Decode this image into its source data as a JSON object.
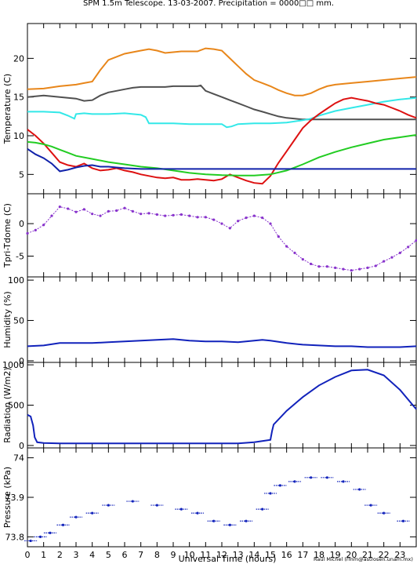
{
  "title": "SPM 1.5m Telescope. 13-03-2007. Precipitation = 0000□□ mm.",
  "xlabel": "Universal Time (hours)",
  "credit": "Raul Michel  (rmm@astrosen.unam.mx)",
  "colors": {
    "orange": "#e8861a",
    "gray": "#505050",
    "cyan": "#33e8e8",
    "red": "#dd1111",
    "green": "#22cc22",
    "blue": "#1122aa",
    "purple": "#8833cc",
    "navy": "#1122bb"
  },
  "chart_data": [
    {
      "type": "line",
      "ylabel": "Temperature (C)",
      "xlim": [
        0,
        24
      ],
      "ylim": [
        2.5,
        24.5
      ],
      "yticks": [
        5,
        10,
        15,
        20
      ],
      "grid": false,
      "series": [
        {
          "color": "orange",
          "x": [
            0,
            1,
            2,
            3,
            3.5,
            4,
            4.5,
            5,
            5.5,
            6,
            6.5,
            7,
            7.5,
            8,
            8.5,
            9,
            9.5,
            10,
            10.5,
            11,
            11.5,
            12,
            12.5,
            13,
            13.5,
            14,
            14.5,
            15,
            15.5,
            16,
            16.5,
            17,
            17.5,
            18,
            18.5,
            19,
            20,
            21,
            22,
            23,
            24
          ],
          "y": [
            16.0,
            16.1,
            16.4,
            16.6,
            16.8,
            17.0,
            18.5,
            19.8,
            20.2,
            20.6,
            20.8,
            21.0,
            21.2,
            21.0,
            20.7,
            20.8,
            20.9,
            20.9,
            20.9,
            21.3,
            21.2,
            21.0,
            20.0,
            19.0,
            18.0,
            17.2,
            16.8,
            16.4,
            15.9,
            15.5,
            15.2,
            15.2,
            15.5,
            16.0,
            16.4,
            16.6,
            16.8,
            17.0,
            17.2,
            17.4,
            17.6
          ]
        },
        {
          "color": "gray",
          "x": [
            0,
            1,
            2,
            3,
            3.5,
            4,
            4.5,
            5,
            5.5,
            6,
            6.5,
            7,
            7.5,
            8,
            8.5,
            9,
            9.5,
            10,
            10.5,
            10.7,
            11,
            11.5,
            12,
            12.5,
            13,
            13.5,
            14,
            14.5,
            15,
            15.5,
            16,
            16.5,
            17,
            18,
            19,
            20,
            21,
            22,
            23,
            24
          ],
          "y": [
            15.0,
            15.2,
            15.0,
            14.8,
            14.5,
            14.6,
            15.2,
            15.6,
            15.8,
            16.0,
            16.2,
            16.3,
            16.3,
            16.3,
            16.3,
            16.4,
            16.4,
            16.4,
            16.4,
            16.5,
            15.8,
            15.4,
            15.0,
            14.6,
            14.2,
            13.8,
            13.4,
            13.1,
            12.8,
            12.5,
            12.3,
            12.2,
            12.1,
            12.1,
            12.1,
            12.1,
            12.1,
            12.1,
            12.1,
            12.1
          ]
        },
        {
          "color": "cyan",
          "x": [
            0,
            1,
            2,
            2.5,
            2.9,
            3,
            3.5,
            4,
            5,
            6,
            7,
            7.3,
            7.5,
            8,
            9,
            10,
            11,
            12,
            12.3,
            12.6,
            13,
            14,
            15,
            16,
            17,
            17.5,
            18,
            19,
            20,
            21,
            22,
            23,
            24
          ],
          "y": [
            13.1,
            13.1,
            13.0,
            12.6,
            12.2,
            12.8,
            12.9,
            12.8,
            12.8,
            12.9,
            12.7,
            12.4,
            11.6,
            11.6,
            11.6,
            11.5,
            11.5,
            11.5,
            11.1,
            11.2,
            11.5,
            11.6,
            11.6,
            11.7,
            12.0,
            12.2,
            12.6,
            13.2,
            13.6,
            14.0,
            14.4,
            14.7,
            14.9
          ]
        },
        {
          "color": "red",
          "x": [
            0,
            0.5,
            1,
            1.5,
            2,
            2.5,
            3,
            3.5,
            4,
            4.5,
            5,
            5.5,
            6,
            6.5,
            7,
            7.5,
            8,
            8.5,
            9,
            9.5,
            10,
            10.5,
            11,
            11.5,
            12,
            12.5,
            13,
            13.5,
            14,
            14.5,
            15,
            15.5,
            16,
            16.5,
            17,
            17.5,
            18,
            18.5,
            19,
            19.5,
            20,
            20.5,
            21,
            21.5,
            22,
            22.5,
            23,
            23.5,
            24
          ],
          "y": [
            10.8,
            10.0,
            9.0,
            7.8,
            6.6,
            6.2,
            6.0,
            6.4,
            5.8,
            5.5,
            5.6,
            5.8,
            5.5,
            5.3,
            5.0,
            4.8,
            4.6,
            4.5,
            4.6,
            4.3,
            4.3,
            4.4,
            4.3,
            4.2,
            4.4,
            5.0,
            4.6,
            4.2,
            3.9,
            3.8,
            4.8,
            6.5,
            8.0,
            9.5,
            11.0,
            12.0,
            12.8,
            13.5,
            14.2,
            14.7,
            14.9,
            14.7,
            14.5,
            14.2,
            14.0,
            13.6,
            13.2,
            12.7,
            12.3
          ]
        },
        {
          "color": "green",
          "x": [
            0,
            0.5,
            1,
            1.5,
            2,
            2.5,
            3,
            4,
            5,
            6,
            7,
            8,
            9,
            10,
            11,
            12,
            13,
            14,
            15,
            16,
            17,
            18,
            19,
            20,
            21,
            22,
            23,
            24
          ],
          "y": [
            9.2,
            9.1,
            8.9,
            8.6,
            8.2,
            7.8,
            7.4,
            7.0,
            6.6,
            6.3,
            6.0,
            5.8,
            5.5,
            5.2,
            5.0,
            4.9,
            4.85,
            4.85,
            5.0,
            5.5,
            6.3,
            7.2,
            7.9,
            8.5,
            9.0,
            9.5,
            9.8,
            10.1
          ]
        },
        {
          "color": "blue",
          "x": [
            0,
            0.5,
            1,
            1.5,
            2,
            2.5,
            3,
            3.5,
            4,
            4.5,
            5,
            5.5,
            6,
            6.5,
            7,
            8,
            9,
            10,
            11,
            12,
            13,
            14,
            15,
            16,
            17,
            18,
            19,
            20,
            21,
            22,
            23,
            24
          ],
          "y": [
            8.3,
            7.6,
            7.1,
            6.4,
            5.4,
            5.6,
            5.9,
            6.1,
            6.2,
            6.0,
            6.0,
            5.9,
            5.8,
            5.75,
            5.7,
            5.7,
            5.7,
            5.7,
            5.7,
            5.7,
            5.7,
            5.7,
            5.7,
            5.7,
            5.7,
            5.7,
            5.7,
            5.7,
            5.7,
            5.7,
            5.7,
            5.7
          ]
        }
      ]
    },
    {
      "type": "scatter",
      "ylabel": "Tpri-Tdome (C)",
      "xlim": [
        0,
        24
      ],
      "ylim": [
        -8.2,
        4.6
      ],
      "yticks": [
        -5,
        0
      ],
      "series": [
        {
          "color": "purple",
          "x": [
            0,
            0.5,
            1,
            1.5,
            2,
            2.5,
            3,
            3.5,
            4,
            4.5,
            5,
            5.5,
            6,
            6.5,
            7,
            7.5,
            8,
            8.5,
            9,
            9.5,
            10,
            10.5,
            11,
            11.5,
            12,
            12.5,
            13,
            13.5,
            14,
            14.5,
            15,
            15.5,
            16,
            16.5,
            17,
            17.5,
            18,
            18.5,
            19,
            19.5,
            20,
            20.5,
            21,
            21.5,
            22,
            22.5,
            23,
            23.5,
            24
          ],
          "y": [
            -1.5,
            -1.0,
            -0.2,
            1.2,
            2.6,
            2.3,
            1.8,
            2.2,
            1.5,
            1.2,
            1.9,
            2.0,
            2.4,
            1.9,
            1.5,
            1.6,
            1.4,
            1.2,
            1.3,
            1.4,
            1.2,
            1.0,
            1.0,
            0.6,
            0.0,
            -0.7,
            0.4,
            0.9,
            1.2,
            0.9,
            0.0,
            -2.0,
            -3.5,
            -4.5,
            -5.5,
            -6.2,
            -6.6,
            -6.6,
            -6.8,
            -7.0,
            -7.2,
            -7.0,
            -6.8,
            -6.5,
            -5.8,
            -5.2,
            -4.5,
            -3.6,
            -2.6
          ]
        }
      ]
    },
    {
      "type": "line",
      "ylabel": "Humidity (%)",
      "xlim": [
        0,
        24
      ],
      "ylim": [
        -2,
        104
      ],
      "yticks": [
        0,
        50,
        100
      ],
      "series": [
        {
          "color": "navy",
          "x": [
            0,
            1,
            2,
            3,
            4,
            5,
            6,
            7,
            8,
            9,
            10,
            11,
            12,
            13,
            14,
            14.5,
            15,
            16,
            17,
            18,
            19,
            20,
            21,
            22,
            23,
            24
          ],
          "y": [
            18,
            19,
            22,
            22,
            22,
            23,
            24,
            25,
            26,
            27,
            25,
            24,
            24,
            23,
            25,
            26,
            25,
            22,
            20,
            19,
            18,
            18,
            17,
            17,
            17,
            18
          ]
        }
      ]
    },
    {
      "type": "line",
      "ylabel": "Radiation (W/m2)",
      "xlim": [
        0,
        24
      ],
      "ylim": [
        -30,
        1030
      ],
      "yticks": [
        0,
        500,
        1000
      ],
      "series": [
        {
          "color": "navy",
          "x": [
            0,
            0.2,
            0.35,
            0.45,
            0.6,
            1,
            2,
            3,
            4,
            5,
            6,
            7,
            8,
            9,
            10,
            11,
            12,
            13,
            14,
            15,
            15.1,
            15.2,
            16,
            17,
            18,
            19,
            20,
            21,
            22,
            23,
            24
          ],
          "y": [
            380,
            360,
            250,
            100,
            40,
            30,
            25,
            25,
            25,
            25,
            25,
            25,
            25,
            25,
            25,
            25,
            25,
            25,
            40,
            70,
            180,
            260,
            430,
            600,
            745,
            850,
            930,
            940,
            870,
            690,
            450
          ]
        }
      ]
    },
    {
      "type": "scatter",
      "ylabel": "Pressure (kPa)",
      "xlim": [
        0,
        24
      ],
      "ylim": [
        73.775,
        74.025
      ],
      "yticks": [
        73.8,
        73.9,
        74
      ],
      "series": [
        {
          "color": "navy",
          "x": [
            0.2,
            0.8,
            1.4,
            2.2,
            3,
            4,
            5,
            6.5,
            8,
            9.5,
            10.5,
            11.5,
            12.5,
            13.5,
            14.5,
            15,
            15.6,
            16.5,
            17.5,
            18.5,
            19.5,
            20.5,
            21.2,
            22,
            23.2
          ],
          "y": [
            73.79,
            73.8,
            73.81,
            73.83,
            73.85,
            73.86,
            73.88,
            73.89,
            73.88,
            73.87,
            73.86,
            73.84,
            73.83,
            73.84,
            73.87,
            73.91,
            73.93,
            73.94,
            73.95,
            73.95,
            73.94,
            73.92,
            73.88,
            73.86,
            73.84
          ]
        }
      ]
    }
  ],
  "xticks": [
    0,
    1,
    2,
    3,
    4,
    5,
    6,
    7,
    8,
    9,
    10,
    11,
    12,
    13,
    14,
    15,
    16,
    17,
    18,
    19,
    20,
    21,
    22,
    23
  ]
}
